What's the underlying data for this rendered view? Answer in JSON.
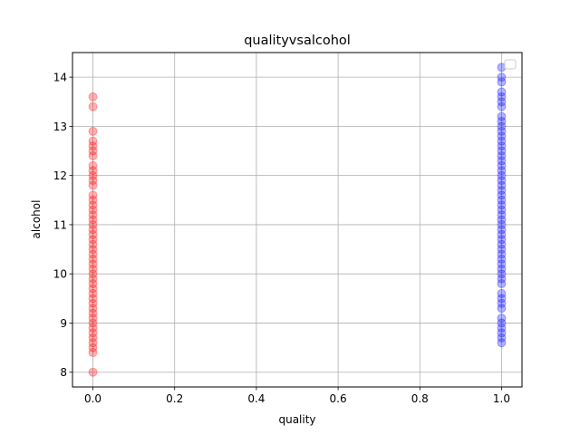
{
  "chart_data": {
    "type": "scatter",
    "title": "qualityvsalcohol",
    "xlabel": "quality",
    "ylabel": "alcohol",
    "xlim": [
      -0.05,
      1.05
    ],
    "ylim": [
      7.7,
      14.5
    ],
    "xticks": [
      0.0,
      0.2,
      0.4,
      0.6,
      0.8,
      1.0
    ],
    "xtick_labels": [
      "0.0",
      "0.2",
      "0.4",
      "0.6",
      "0.8",
      "1.0"
    ],
    "yticks": [
      8,
      9,
      10,
      11,
      12,
      13,
      14
    ],
    "ytick_labels": [
      "8",
      "9",
      "10",
      "11",
      "12",
      "13",
      "14"
    ],
    "grid": true,
    "legend": "upper right (empty)",
    "series": [
      {
        "color": "#ff0000",
        "alpha": 0.3,
        "points": [
          [
            0,
            8.0
          ],
          [
            0,
            8.4
          ],
          [
            0,
            8.5
          ],
          [
            0,
            8.6
          ],
          [
            0,
            8.7
          ],
          [
            0,
            8.8
          ],
          [
            0,
            8.9
          ],
          [
            0,
            9.0
          ],
          [
            0,
            9.1
          ],
          [
            0,
            9.2
          ],
          [
            0,
            9.3
          ],
          [
            0,
            9.4
          ],
          [
            0,
            9.5
          ],
          [
            0,
            9.6
          ],
          [
            0,
            9.7
          ],
          [
            0,
            9.8
          ],
          [
            0,
            9.9
          ],
          [
            0,
            10.0
          ],
          [
            0,
            10.1
          ],
          [
            0,
            10.2
          ],
          [
            0,
            10.3
          ],
          [
            0,
            10.4
          ],
          [
            0,
            10.5
          ],
          [
            0,
            10.6
          ],
          [
            0,
            10.7
          ],
          [
            0,
            10.8
          ],
          [
            0,
            10.9
          ],
          [
            0,
            11.0
          ],
          [
            0,
            11.1
          ],
          [
            0,
            11.2
          ],
          [
            0,
            11.3
          ],
          [
            0,
            11.4
          ],
          [
            0,
            11.5
          ],
          [
            0,
            11.6
          ],
          [
            0,
            11.8
          ],
          [
            0,
            11.9
          ],
          [
            0,
            12.0
          ],
          [
            0,
            12.1
          ],
          [
            0,
            12.2
          ],
          [
            0,
            12.4
          ],
          [
            0,
            12.5
          ],
          [
            0,
            12.6
          ],
          [
            0,
            12.7
          ],
          [
            0,
            12.9
          ],
          [
            0,
            13.4
          ],
          [
            0,
            13.6
          ]
        ]
      },
      {
        "color": "#0000ff",
        "alpha": 0.3,
        "points": [
          [
            1,
            8.6
          ],
          [
            1,
            8.7
          ],
          [
            1,
            8.8
          ],
          [
            1,
            8.9
          ],
          [
            1,
            9.0
          ],
          [
            1,
            9.1
          ],
          [
            1,
            9.3
          ],
          [
            1,
            9.4
          ],
          [
            1,
            9.5
          ],
          [
            1,
            9.6
          ],
          [
            1,
            9.8
          ],
          [
            1,
            9.9
          ],
          [
            1,
            10.0
          ],
          [
            1,
            10.1
          ],
          [
            1,
            10.2
          ],
          [
            1,
            10.3
          ],
          [
            1,
            10.4
          ],
          [
            1,
            10.5
          ],
          [
            1,
            10.6
          ],
          [
            1,
            10.7
          ],
          [
            1,
            10.8
          ],
          [
            1,
            10.9
          ],
          [
            1,
            11.0
          ],
          [
            1,
            11.1
          ],
          [
            1,
            11.2
          ],
          [
            1,
            11.3
          ],
          [
            1,
            11.4
          ],
          [
            1,
            11.5
          ],
          [
            1,
            11.6
          ],
          [
            1,
            11.7
          ],
          [
            1,
            11.8
          ],
          [
            1,
            11.9
          ],
          [
            1,
            12.0
          ],
          [
            1,
            12.1
          ],
          [
            1,
            12.2
          ],
          [
            1,
            12.3
          ],
          [
            1,
            12.4
          ],
          [
            1,
            12.5
          ],
          [
            1,
            12.6
          ],
          [
            1,
            12.7
          ],
          [
            1,
            12.8
          ],
          [
            1,
            12.9
          ],
          [
            1,
            13.0
          ],
          [
            1,
            13.1
          ],
          [
            1,
            13.2
          ],
          [
            1,
            13.4
          ],
          [
            1,
            13.5
          ],
          [
            1,
            13.6
          ],
          [
            1,
            13.7
          ],
          [
            1,
            13.9
          ],
          [
            1,
            14.0
          ],
          [
            1,
            14.2
          ]
        ]
      }
    ]
  }
}
